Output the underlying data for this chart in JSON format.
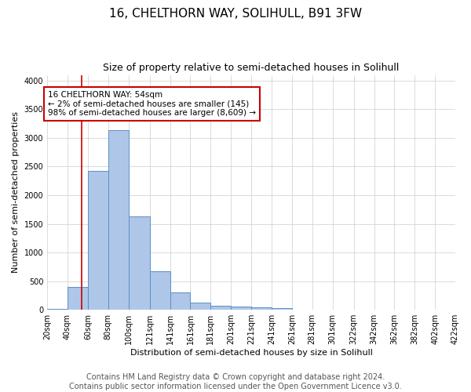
{
  "title": "16, CHELTHORN WAY, SOLIHULL, B91 3FW",
  "subtitle": "Size of property relative to semi-detached houses in Solihull",
  "xlabel": "Distribution of semi-detached houses by size in Solihull",
  "ylabel": "Number of semi-detached properties",
  "footer_line1": "Contains HM Land Registry data © Crown copyright and database right 2024.",
  "footer_line2": "Contains public sector information licensed under the Open Government Licence v3.0.",
  "bin_edges": [
    20,
    40,
    60,
    80,
    100,
    121,
    141,
    161,
    181,
    201,
    221,
    241,
    261,
    281,
    301,
    322,
    342,
    362,
    382,
    402,
    422
  ],
  "bar_heights": [
    10,
    400,
    2430,
    3130,
    1630,
    680,
    300,
    120,
    70,
    55,
    40,
    30,
    5,
    3,
    2,
    2,
    1,
    1,
    0,
    0
  ],
  "bin_labels": [
    "20sqm",
    "40sqm",
    "60sqm",
    "80sqm",
    "100sqm",
    "121sqm",
    "141sqm",
    "161sqm",
    "181sqm",
    "201sqm",
    "221sqm",
    "241sqm",
    "261sqm",
    "281sqm",
    "301sqm",
    "322sqm",
    "342sqm",
    "362sqm",
    "382sqm",
    "402sqm",
    "422sqm"
  ],
  "bar_color": "#aec6e8",
  "bar_edge_color": "#5a90c8",
  "property_line_x": 54,
  "property_line_color": "#cc0000",
  "annotation_text": "16 CHELTHORN WAY: 54sqm\n← 2% of semi-detached houses are smaller (145)\n98% of semi-detached houses are larger (8,609) →",
  "annotation_box_color": "#ffffff",
  "annotation_box_edge_color": "#cc0000",
  "ylim": [
    0,
    4100
  ],
  "xlim": [
    20,
    422
  ],
  "background_color": "#ffffff",
  "grid_color": "#cccccc",
  "title_fontsize": 11,
  "subtitle_fontsize": 9,
  "axis_label_fontsize": 8,
  "tick_fontsize": 7,
  "annotation_fontsize": 7.5,
  "footer_fontsize": 7
}
